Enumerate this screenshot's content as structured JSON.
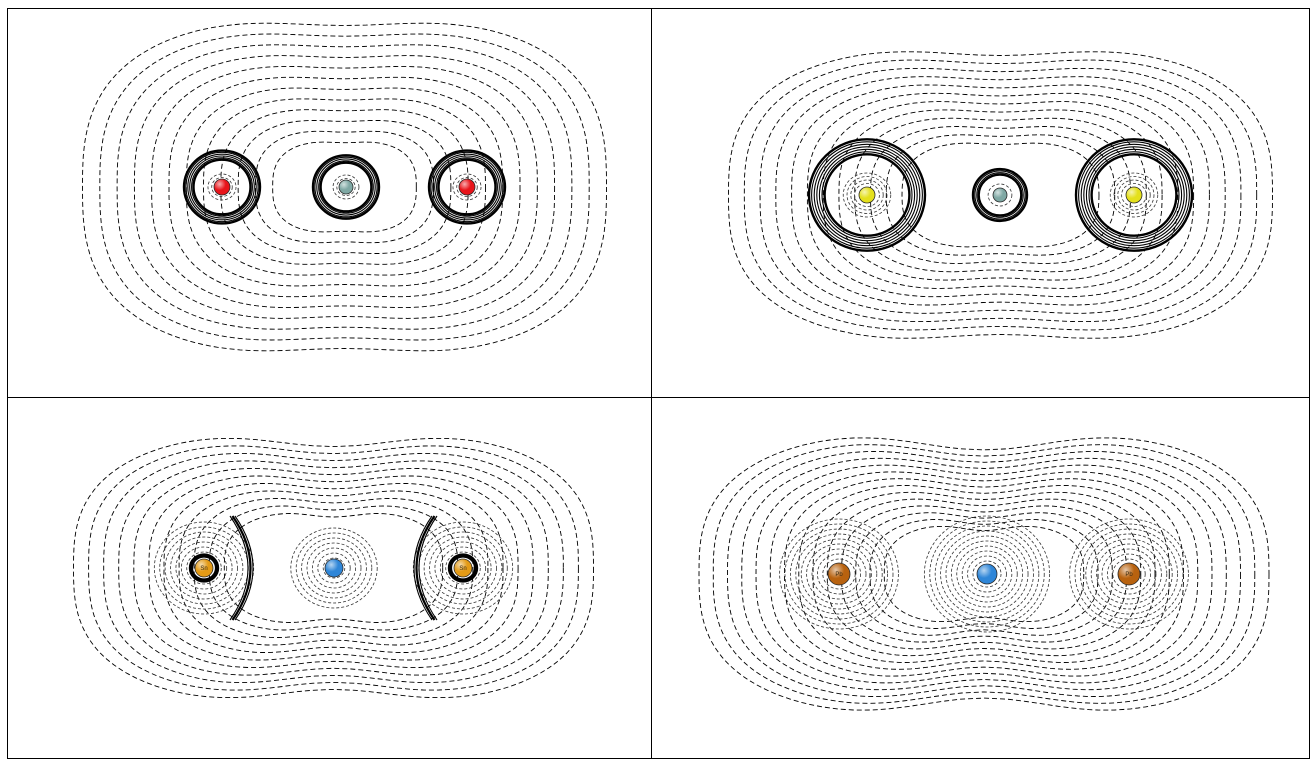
{
  "figure": {
    "layout": "2x2-grid",
    "style": {
      "background": "#ffffff",
      "border_color": "#000000",
      "contour_color": "#000000",
      "outer_contour_style": "dashed",
      "core_contour_style": "solid"
    },
    "panels": [
      {
        "position": "top-left",
        "atoms": [
          {
            "role": "terminal",
            "color": "#e8141a",
            "label": ""
          },
          {
            "role": "central",
            "color": "#7fa8a4",
            "label": ""
          },
          {
            "role": "terminal",
            "color": "#e8141a",
            "label": ""
          }
        ],
        "features": [
          "solid-shells-around-all-atoms"
        ]
      },
      {
        "position": "top-right",
        "atoms": [
          {
            "role": "terminal",
            "color": "#e4e01c",
            "label": ""
          },
          {
            "role": "central",
            "color": "#7fa8a4",
            "label": ""
          },
          {
            "role": "terminal",
            "color": "#e4e01c",
            "label": ""
          }
        ],
        "features": [
          "large-solid-shells-around-terminal-atoms"
        ]
      },
      {
        "position": "bottom-left",
        "atoms": [
          {
            "role": "terminal",
            "color": "#e39a16",
            "label": "Sn"
          },
          {
            "role": "central",
            "color": "#2f86d8",
            "label": ""
          },
          {
            "role": "terminal",
            "color": "#e39a16",
            "label": "Sn"
          }
        ],
        "features": [
          "solid-arcs-facing-central-atom"
        ]
      },
      {
        "position": "bottom-right",
        "atoms": [
          {
            "role": "terminal",
            "color": "#b8620f",
            "label": "Pb"
          },
          {
            "role": "central",
            "color": "#2f86d8",
            "label": ""
          },
          {
            "role": "terminal",
            "color": "#b8620f",
            "label": "Pb"
          }
        ],
        "features": [
          "dashed-contours-only"
        ]
      }
    ]
  }
}
